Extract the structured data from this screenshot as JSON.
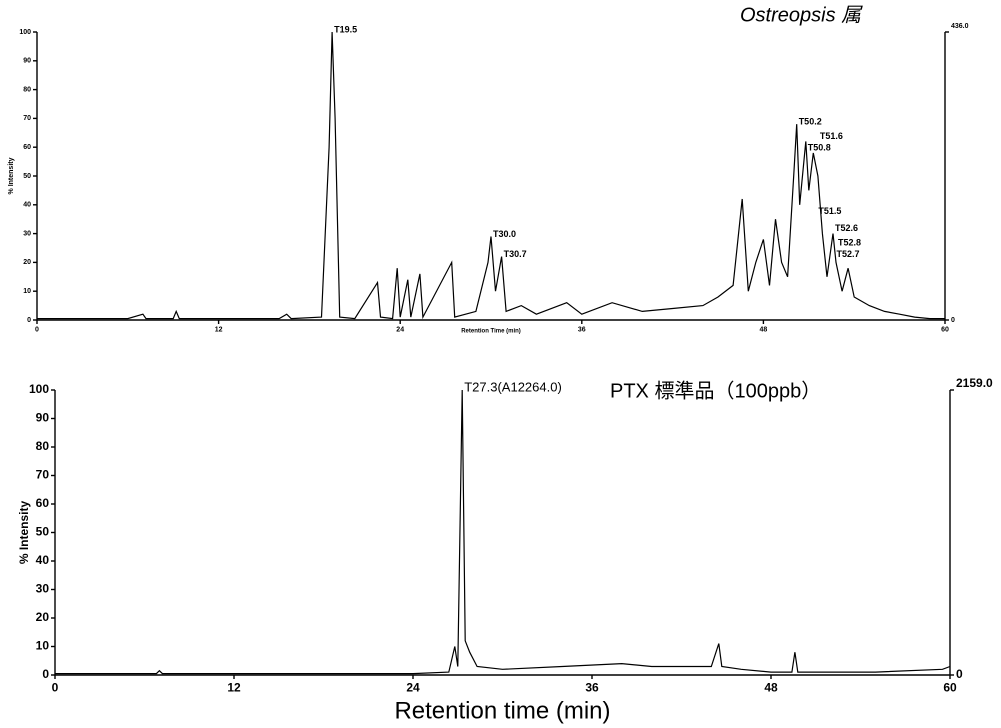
{
  "chart_data": [
    {
      "type": "line",
      "title": "Ostreopsis 属",
      "xlabel": "Retention Time (min)",
      "ylabel": "% Intensity",
      "xlim": [
        0,
        60
      ],
      "xticks": [
        0,
        12,
        24,
        36,
        48,
        60
      ],
      "ylim": [
        0,
        100
      ],
      "yticks": [
        0,
        10,
        20,
        30,
        40,
        50,
        60,
        70,
        80,
        90,
        100
      ],
      "y2lim": [
        0,
        436
      ],
      "y2ticks": [
        0,
        {
          "value": 436,
          "label": "436.0"
        }
      ],
      "color": "#000000",
      "x": [
        0,
        6,
        7,
        7.2,
        9,
        9.2,
        9.4,
        16,
        16.5,
        16.8,
        18.8,
        19.3,
        19.5,
        19.7,
        20,
        21,
        22.5,
        22.7,
        23.5,
        23.8,
        24,
        24.5,
        24.7,
        25.3,
        25.5,
        27.4,
        27.6,
        29,
        29.8,
        30,
        30.3,
        30.7,
        31,
        32,
        33,
        35,
        36,
        38,
        40,
        42,
        44,
        45,
        46,
        46.6,
        47,
        47.5,
        48,
        48.4,
        48.8,
        49.2,
        49.6,
        50,
        50.2,
        50.4,
        50.8,
        51,
        51.3,
        51.6,
        51.9,
        52.2,
        52.6,
        52.8,
        53.2,
        53.6,
        54,
        55,
        56,
        57,
        58,
        59,
        60
      ],
      "values": [
        0.5,
        0.5,
        2,
        0.5,
        0.5,
        3,
        0.5,
        0.5,
        2,
        0.5,
        1,
        60,
        100,
        70,
        1,
        0.5,
        13,
        1,
        0.5,
        18,
        1,
        14,
        1,
        16,
        1,
        20,
        1,
        3,
        20,
        29,
        10,
        22,
        3,
        5,
        2,
        6,
        2,
        6,
        3,
        4,
        5,
        8,
        12,
        42,
        10,
        20,
        28,
        12,
        35,
        20,
        15,
        50,
        68,
        40,
        62,
        45,
        58,
        50,
        30,
        15,
        30,
        20,
        10,
        18,
        8,
        5,
        3,
        2,
        1,
        0.5,
        0.5
      ],
      "annotations": [
        {
          "text": "T19.5",
          "x": 19.5,
          "y": 100
        },
        {
          "text": "T30.0",
          "x": 30.0,
          "y": 29
        },
        {
          "text": "T30.7",
          "x": 30.7,
          "y": 22
        },
        {
          "text": "T50.2",
          "x": 50.2,
          "y": 68
        },
        {
          "text": "T51.6",
          "x": 51.6,
          "y": 63
        },
        {
          "text": "T50.8",
          "x": 50.8,
          "y": 59
        },
        {
          "text": "T51.5",
          "x": 51.5,
          "y": 37
        },
        {
          "text": "T52.6",
          "x": 52.6,
          "y": 31
        },
        {
          "text": "T52.8",
          "x": 52.8,
          "y": 26
        },
        {
          "text": "T52.7",
          "x": 52.7,
          "y": 22
        }
      ]
    },
    {
      "type": "line",
      "title": "PTX 標準品（100ppb）",
      "xlabel": "Retention time (min)",
      "ylabel": "% Intensity",
      "xlim": [
        0,
        60
      ],
      "xticks": [
        0,
        12,
        24,
        36,
        48,
        60
      ],
      "ylim": [
        0,
        100
      ],
      "yticks": [
        0,
        10,
        20,
        30,
        40,
        50,
        60,
        70,
        80,
        90,
        100
      ],
      "y2lim": [
        0,
        2159
      ],
      "y2ticks": [
        0,
        {
          "value": 2159,
          "label": "2159.0"
        }
      ],
      "color": "#000000",
      "x": [
        0,
        6.8,
        7,
        7.2,
        24,
        26.4,
        26.8,
        27,
        27.3,
        27.5,
        27.8,
        28.3,
        30,
        34,
        38,
        40,
        44,
        44.5,
        44.7,
        46,
        48,
        49.4,
        49.6,
        49.8,
        55,
        59.5,
        60
      ],
      "values": [
        0.5,
        0.5,
        1.5,
        0.5,
        0.5,
        1,
        10,
        3,
        100,
        12,
        8,
        3,
        2,
        3,
        4,
        3,
        3,
        11,
        3,
        2,
        1,
        1,
        8,
        1,
        1,
        2,
        3
      ],
      "annotations": [
        {
          "text": "T27.3(A12264.0)",
          "x": 27.3,
          "y": 100
        }
      ]
    }
  ]
}
